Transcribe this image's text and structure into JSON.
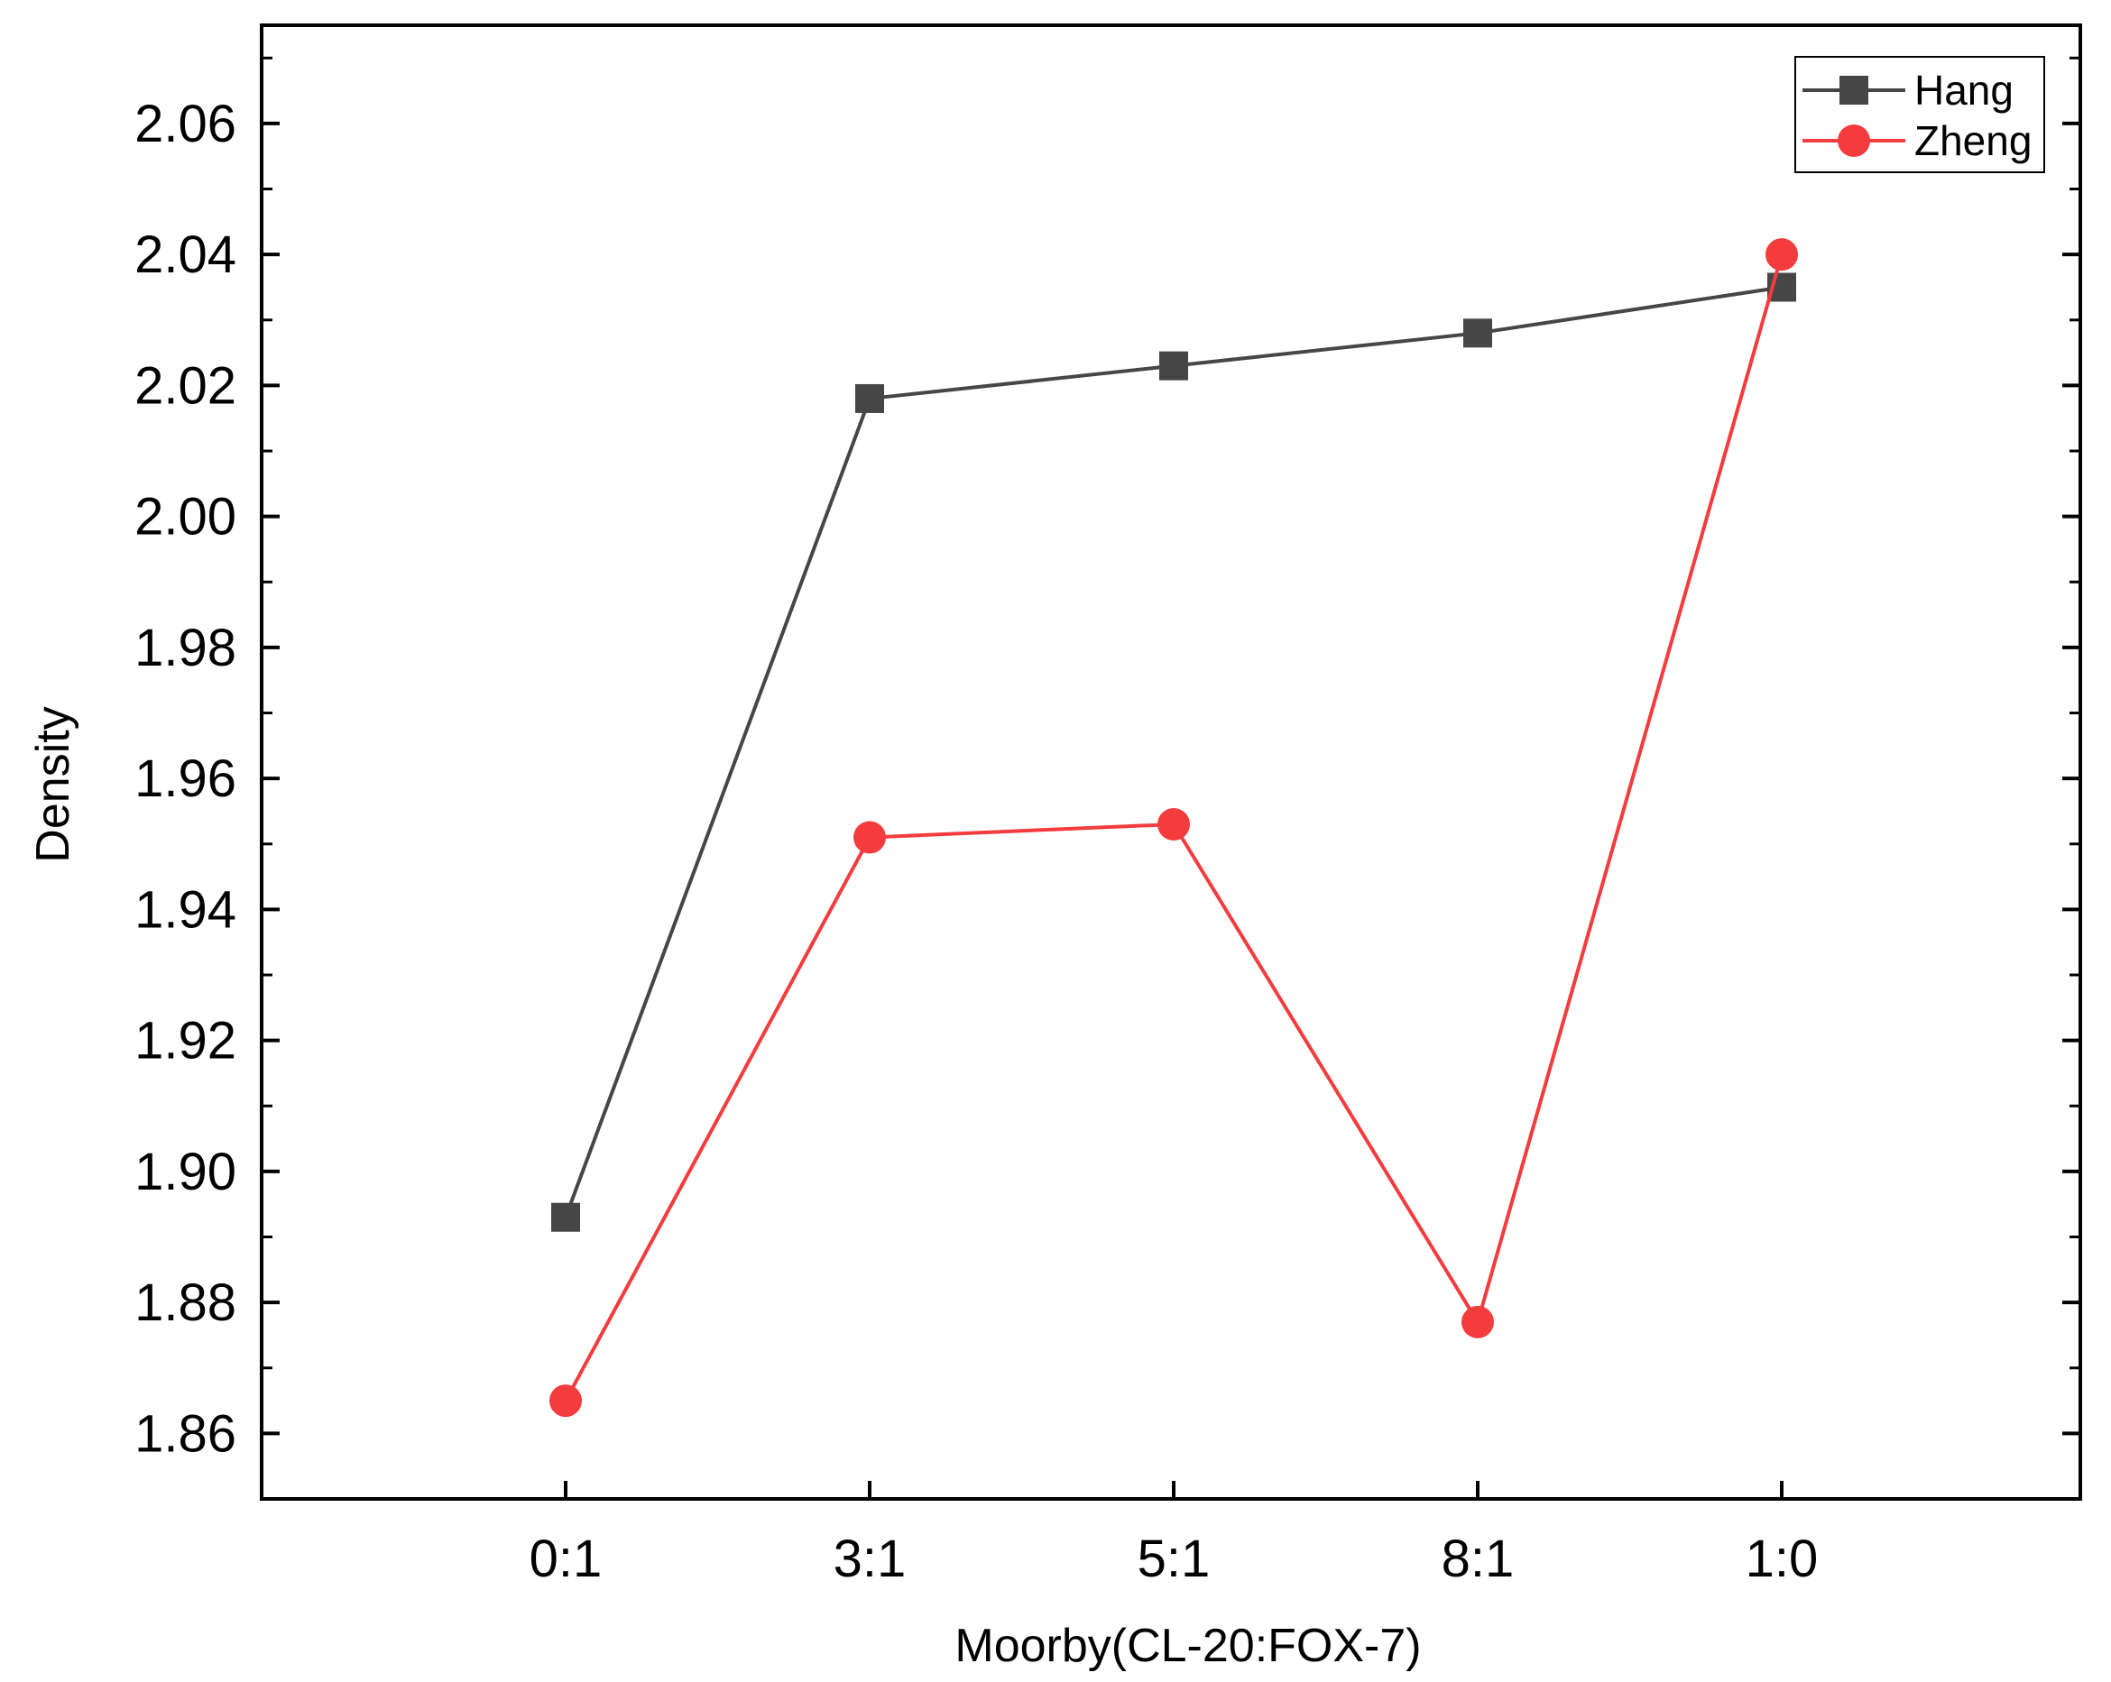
{
  "chart_data": {
    "type": "line",
    "title": "",
    "xlabel": "Moorby(CL-20:FOX-7)",
    "ylabel": "Density",
    "categories": [
      "0:1",
      "3:1",
      "5:1",
      "8:1",
      "1:0"
    ],
    "ylim": [
      1.85,
      2.075
    ],
    "yticks": [
      1.86,
      1.88,
      1.9,
      1.92,
      1.94,
      1.96,
      1.98,
      2.0,
      2.02,
      2.04,
      2.06
    ],
    "ytick_labels": [
      "1.86",
      "1.88",
      "1.90",
      "1.92",
      "1.94",
      "1.96",
      "1.98",
      "2.00",
      "2.02",
      "2.04",
      "2.06"
    ],
    "grid": false,
    "legend_position": "top-right",
    "series": [
      {
        "name": "Hang",
        "marker": "square",
        "color": "#464646",
        "values": [
          1.893,
          2.018,
          2.023,
          2.028,
          2.035
        ]
      },
      {
        "name": "Zheng",
        "marker": "circle",
        "color": "#f43b3e",
        "values": [
          1.865,
          1.951,
          1.953,
          1.877,
          2.04
        ]
      }
    ]
  }
}
